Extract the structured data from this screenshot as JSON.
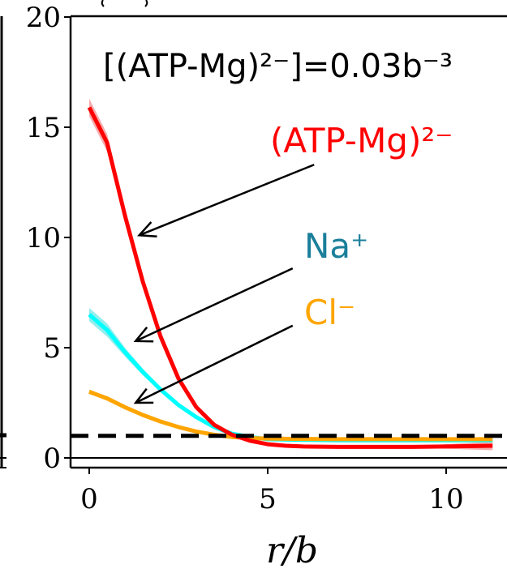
{
  "chart_data": {
    "type": "line",
    "title": "",
    "xlabel": "r/b",
    "ylabel": "",
    "xlim": [
      -0.5,
      11.5
    ],
    "ylim": [
      -0.5,
      20
    ],
    "x_ticks": [
      0,
      5,
      10
    ],
    "y_ticks": [
      0,
      5,
      10,
      15,
      20
    ],
    "reference_line": {
      "y": 1,
      "style": "dashed",
      "color": "#000000"
    },
    "concentration_label": "[(ATP-Mg)²⁻]=0.03b⁻³",
    "series": [
      {
        "name": "(ATP-Mg)²⁻",
        "color": "#ff0000",
        "band_color": "#f28a8a",
        "x": [
          0,
          0.5,
          1,
          1.5,
          2,
          2.5,
          3,
          3.5,
          4,
          4.5,
          5,
          5.5,
          6,
          7,
          8,
          9,
          10,
          11.3
        ],
        "y": [
          15.9,
          14.3,
          11.0,
          8.0,
          5.5,
          3.6,
          2.3,
          1.5,
          1.05,
          0.78,
          0.62,
          0.55,
          0.52,
          0.5,
          0.5,
          0.5,
          0.52,
          0.55
        ],
        "band": [
          0.4,
          0.4,
          0.2,
          0.15,
          0.1,
          0.1,
          0.05,
          0.05,
          0.05,
          0.05,
          0.05,
          0.05,
          0.05,
          0.05,
          0.05,
          0.05,
          0.1,
          0.2
        ]
      },
      {
        "name": "Na⁺",
        "color": "#00ffff",
        "band_color": "#66e6e6",
        "x": [
          0,
          0.5,
          1,
          1.5,
          2,
          2.5,
          3,
          3.5,
          4,
          4.5,
          5,
          6,
          7,
          8,
          9,
          10,
          11.3
        ],
        "y": [
          6.5,
          5.8,
          4.8,
          3.9,
          3.1,
          2.4,
          1.85,
          1.4,
          1.1,
          0.95,
          0.85,
          0.82,
          0.8,
          0.8,
          0.8,
          0.8,
          0.8
        ],
        "band": [
          0.3,
          0.3,
          0.2,
          0.15,
          0.1,
          0.1,
          0.05,
          0.05,
          0.05,
          0.05,
          0.05,
          0.05,
          0.05,
          0.05,
          0.05,
          0.05,
          0.05
        ]
      },
      {
        "name": "Cl⁻",
        "color": "#ffa500",
        "band_color": "#ffc766",
        "x": [
          0,
          0.5,
          1,
          1.5,
          2,
          2.5,
          3,
          3.5,
          4,
          4.5,
          5,
          6,
          7,
          8,
          9,
          10,
          11.3
        ],
        "y": [
          3.0,
          2.7,
          2.3,
          1.95,
          1.65,
          1.4,
          1.2,
          1.05,
          0.95,
          0.9,
          0.88,
          0.86,
          0.85,
          0.85,
          0.85,
          0.85,
          0.85
        ],
        "band": [
          0.1,
          0.1,
          0.1,
          0.05,
          0.05,
          0.05,
          0.05,
          0.05,
          0.05,
          0.05,
          0.05,
          0.05,
          0.05,
          0.05,
          0.05,
          0.05,
          0.05
        ]
      }
    ],
    "annotations": [
      {
        "label": "(ATP-Mg)²⁻",
        "color": "#ff0000",
        "from": [
          6.3,
          13.3
        ],
        "to": [
          1.4,
          10.1
        ]
      },
      {
        "label": "Na⁺",
        "color": "#1a7f9a",
        "from": [
          5.7,
          8.6
        ],
        "to": [
          1.3,
          5.3
        ]
      },
      {
        "label": "Cl⁻",
        "color": "#ffa500",
        "from": [
          5.7,
          6.0
        ],
        "to": [
          1.3,
          2.5
        ]
      }
    ]
  }
}
